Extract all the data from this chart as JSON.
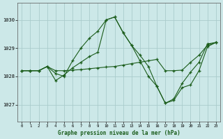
{
  "title": "Graphe pression niveau de la mer (hPa)",
  "background_color": "#cce8e8",
  "grid_color": "#aacccc",
  "line_color": "#1a5c1a",
  "xlim": [
    -0.5,
    23.5
  ],
  "ylim": [
    1026.4,
    1030.6
  ],
  "yticks": [
    1027,
    1028,
    1029,
    1030
  ],
  "xticks": [
    0,
    1,
    2,
    3,
    4,
    5,
    6,
    7,
    8,
    9,
    10,
    11,
    12,
    13,
    14,
    15,
    16,
    17,
    18,
    19,
    20,
    21,
    22,
    23
  ],
  "line1_x": [
    0,
    1,
    2,
    3,
    4,
    5,
    6,
    7,
    8,
    9,
    10,
    11,
    12,
    13,
    14,
    15,
    16,
    17,
    18,
    19,
    20,
    21,
    22,
    23
  ],
  "line1_y": [
    1028.2,
    1028.2,
    1028.2,
    1028.35,
    1028.2,
    1028.2,
    1028.22,
    1028.24,
    1028.27,
    1028.3,
    1028.33,
    1028.35,
    1028.4,
    1028.45,
    1028.5,
    1028.55,
    1028.6,
    1028.2,
    1028.2,
    1028.22,
    1028.5,
    1028.75,
    1029.1,
    1029.2
  ],
  "line2_x": [
    0,
    1,
    2,
    3,
    4,
    5,
    6,
    7,
    8,
    9,
    10,
    11,
    12,
    13,
    14,
    15,
    16,
    17,
    18,
    19,
    20,
    21,
    22,
    23
  ],
  "line2_y": [
    1028.2,
    1028.2,
    1028.2,
    1028.35,
    1028.1,
    1028.0,
    1028.55,
    1029.0,
    1029.35,
    1029.6,
    1030.0,
    1030.1,
    1029.55,
    1029.1,
    1028.75,
    1028.35,
    1027.65,
    1027.05,
    1027.15,
    1027.6,
    1027.7,
    1028.2,
    1029.05,
    1029.2
  ],
  "line3_x": [
    0,
    1,
    2,
    3,
    4,
    5,
    6,
    7,
    8,
    9,
    10,
    11,
    12,
    13,
    14,
    15,
    16,
    17,
    18,
    19,
    20,
    21,
    22,
    23
  ],
  "line3_y": [
    1028.2,
    1028.2,
    1028.2,
    1028.35,
    1027.85,
    1028.05,
    1028.3,
    1028.5,
    1028.7,
    1028.85,
    1030.0,
    1030.1,
    1029.55,
    1029.1,
    1028.55,
    1028.0,
    1027.65,
    1027.05,
    1027.2,
    1027.75,
    1028.15,
    1028.5,
    1029.15,
    1029.2
  ]
}
